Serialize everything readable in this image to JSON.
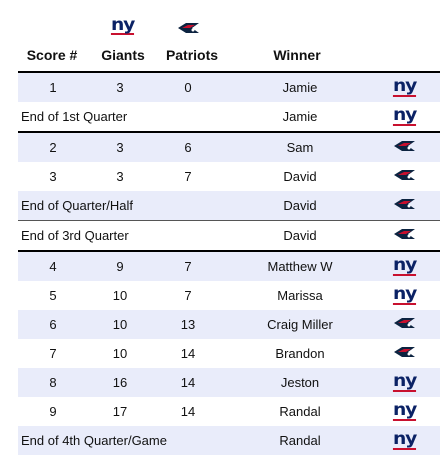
{
  "header": {
    "columns": [
      "Score #",
      "Giants",
      "Patriots",
      "Winner"
    ],
    "logos": [
      "giants-logo",
      "patriots-logo"
    ]
  },
  "rows": [
    {
      "kind": "score",
      "score": "1",
      "giants": "3",
      "patriots": "0",
      "winner": "Jamie",
      "logo": "giants"
    },
    {
      "kind": "quarter",
      "label": "End of 1st Quarter",
      "winner": "Jamie",
      "logo": "giants"
    },
    {
      "kind": "score",
      "score": "2",
      "giants": "3",
      "patriots": "6",
      "winner": "Sam",
      "logo": "patriots"
    },
    {
      "kind": "score",
      "score": "3",
      "giants": "3",
      "patriots": "7",
      "winner": "David",
      "logo": "patriots"
    },
    {
      "kind": "quarter",
      "label": "End of Quarter/Half",
      "winner": "David",
      "logo": "patriots"
    },
    {
      "kind": "quarter",
      "label": "End of 3rd Quarter",
      "winner": "David",
      "logo": "patriots"
    },
    {
      "kind": "score",
      "score": "4",
      "giants": "9",
      "patriots": "7",
      "winner": "Matthew W",
      "logo": "giants"
    },
    {
      "kind": "score",
      "score": "5",
      "giants": "10",
      "patriots": "7",
      "winner": "Marissa",
      "logo": "giants"
    },
    {
      "kind": "score",
      "score": "6",
      "giants": "10",
      "patriots": "13",
      "winner": "Craig Miller",
      "logo": "patriots"
    },
    {
      "kind": "score",
      "score": "7",
      "giants": "10",
      "patriots": "14",
      "winner": "Brandon",
      "logo": "patriots"
    },
    {
      "kind": "score",
      "score": "8",
      "giants": "16",
      "patriots": "14",
      "winner": "Jeston",
      "logo": "giants"
    },
    {
      "kind": "score",
      "score": "9",
      "giants": "17",
      "patriots": "14",
      "winner": "Randal",
      "logo": "giants"
    },
    {
      "kind": "quarter",
      "label": "End of 4th Quarter/Game",
      "winner": "Randal",
      "logo": "giants"
    }
  ],
  "colors": {
    "band": "#e9ecfa",
    "giants_blue": "#0b2265",
    "giants_red": "#c8102e",
    "patriots_navy": "#0c2340",
    "patriots_red": "#c8102e"
  }
}
